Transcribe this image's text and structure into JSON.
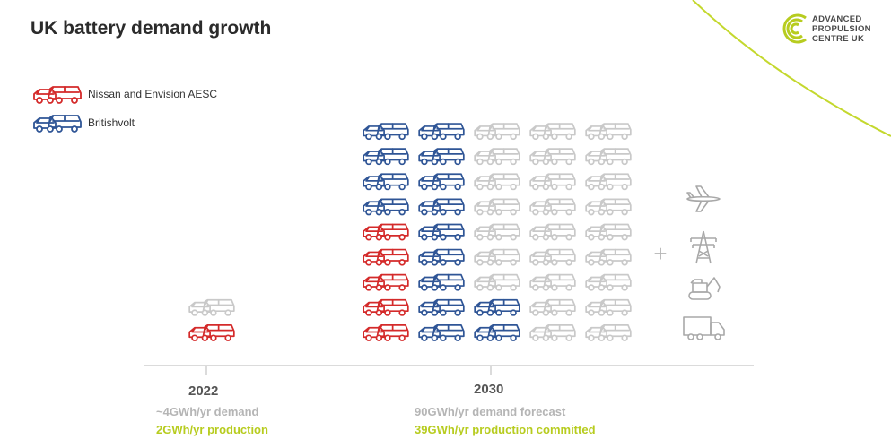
{
  "header": {
    "title": "UK battery demand growth"
  },
  "logo": {
    "line1": "ADVANCED",
    "line2": "PROPULSION",
    "line3": "CENTRE UK"
  },
  "colors": {
    "red": "#d42a2a",
    "blue": "#2f5596",
    "grey": "#c9c9c9",
    "green": "#b7cc1f",
    "accent_line": "#c4d82e"
  },
  "chart_data": {
    "type": "pictogram",
    "legend": [
      {
        "name": "Nissan and Envision AESC",
        "color": "red"
      },
      {
        "name": "Britishvolt",
        "color": "blue"
      }
    ],
    "groups": [
      {
        "year": "2022",
        "demand_label": "~4GWh/yr demand",
        "production_label": "2GWh/yr production",
        "columns": [
          [
            "red",
            "grey"
          ]
        ]
      },
      {
        "year": "2030",
        "demand_label": "90GWh/yr demand forecast",
        "production_label": "39GWh/yr production committed",
        "columns": [
          [
            "red",
            "red",
            "red",
            "red",
            "red",
            "blue",
            "blue",
            "blue",
            "blue"
          ],
          [
            "blue",
            "blue",
            "blue",
            "blue",
            "blue",
            "blue",
            "blue",
            "blue",
            "blue"
          ],
          [
            "blue",
            "blue",
            "grey",
            "grey",
            "grey",
            "grey",
            "grey",
            "grey",
            "grey"
          ],
          [
            "grey",
            "grey",
            "grey",
            "grey",
            "grey",
            "grey",
            "grey",
            "grey",
            "grey"
          ],
          [
            "grey",
            "grey",
            "grey",
            "grey",
            "grey",
            "grey",
            "grey",
            "grey",
            "grey"
          ]
        ]
      }
    ],
    "plus_sign": "+",
    "other_sectors": [
      "airplane-icon",
      "pylon-icon",
      "excavator-icon",
      "truck-icon"
    ]
  }
}
